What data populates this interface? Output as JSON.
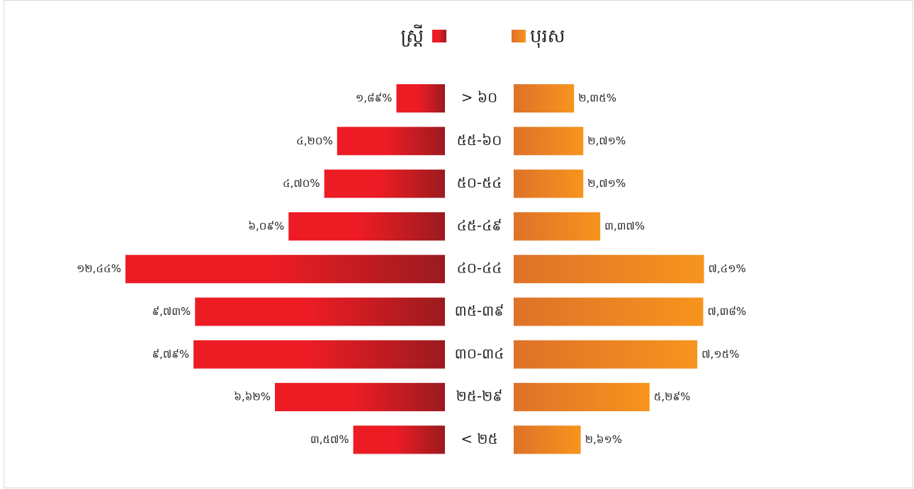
{
  "chart_data": {
    "type": "pyramid",
    "categories": [
      "> ៦០",
      "៥៥-៦០",
      "៥០-៥៤",
      "៤៥-៤៩",
      "៤០-៤៤",
      "៣៥-៣៩",
      "៣០-៣៤",
      "២៥-២៩",
      "< ២៥"
    ],
    "series": [
      {
        "name": "ស្ត្រី",
        "color": "#ed1c24",
        "values": [
          1.89,
          4.2,
          4.7,
          6.09,
          12.44,
          9.73,
          9.79,
          6.62,
          3.57
        ],
        "value_labels": [
          "១,៨៩%",
          "៤,២០%",
          "៤,៧០%",
          "៦,០៩%",
          "១២,៤៤%",
          "៩,៧៣%",
          "៩,៧៩%",
          "៦,៦២%",
          "៣,៥៧%"
        ]
      },
      {
        "name": "បុរស",
        "color": "#e8822a",
        "values": [
          2.35,
          2.71,
          2.71,
          3.37,
          7.41,
          7.38,
          7.15,
          5.29,
          2.61
        ],
        "value_labels": [
          "២,៣៥%",
          "២,៧១%",
          "២,៧១%",
          "៣,៣៧%",
          "៧,៤១%",
          "៧,៣៨%",
          "៧,១៥%",
          "៥,២៩%",
          "២,៦១%"
        ]
      }
    ]
  }
}
